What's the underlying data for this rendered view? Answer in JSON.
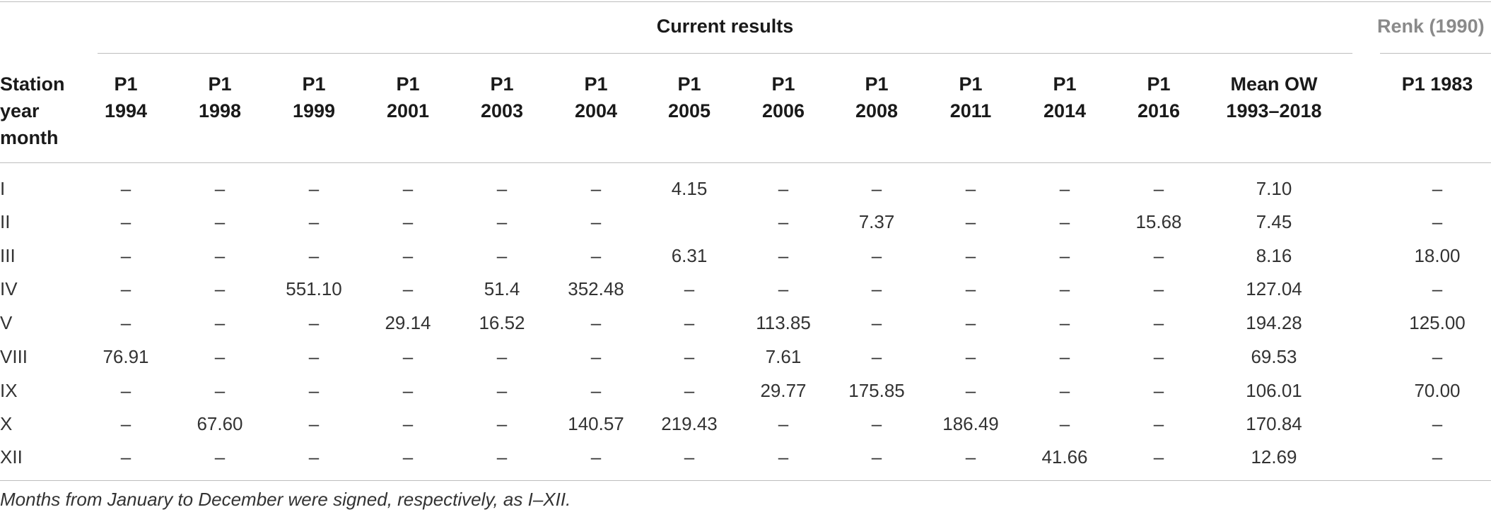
{
  "group_headers": {
    "current": "Current results",
    "renk": "Renk (1990)"
  },
  "columns": [
    "Station\nyear\nmonth",
    "P1\n1994",
    "P1\n1998",
    "P1\n1999",
    "P1\n2001",
    "P1\n2003",
    "P1\n2004",
    "P1\n2005",
    "P1\n2006",
    "P1\n2008",
    "P1\n2011",
    "P1\n2014",
    "P1\n2016",
    "Mean OW\n1993–2018",
    "P1 1983"
  ],
  "rows": [
    {
      "label": "I",
      "values": [
        "–",
        "–",
        "–",
        "–",
        "–",
        "–",
        "4.15",
        "–",
        "–",
        "–",
        "–",
        "–",
        "7.10",
        "–"
      ]
    },
    {
      "label": "II",
      "values": [
        "–",
        "–",
        "–",
        "–",
        "–",
        "–",
        "",
        "–",
        "7.37",
        "–",
        "–",
        "15.68",
        "7.45",
        "–"
      ]
    },
    {
      "label": "III",
      "values": [
        "–",
        "–",
        "–",
        "–",
        "–",
        "–",
        "6.31",
        "–",
        "–",
        "–",
        "–",
        "–",
        "8.16",
        "18.00"
      ]
    },
    {
      "label": "IV",
      "values": [
        "–",
        "–",
        "551.10",
        "–",
        "51.4",
        "352.48",
        "–",
        "–",
        "–",
        "–",
        "–",
        "–",
        "127.04",
        "–"
      ]
    },
    {
      "label": "V",
      "values": [
        "–",
        "–",
        "–",
        "29.14",
        "16.52",
        "–",
        "–",
        "113.85",
        "–",
        "–",
        "–",
        "–",
        "194.28",
        "125.00"
      ]
    },
    {
      "label": "VIII",
      "values": [
        "76.91",
        "–",
        "–",
        "–",
        "–",
        "–",
        "–",
        "7.61",
        "–",
        "–",
        "–",
        "–",
        "69.53",
        "–"
      ]
    },
    {
      "label": "IX",
      "values": [
        "–",
        "–",
        "–",
        "–",
        "–",
        "–",
        "–",
        "29.77",
        "175.85",
        "–",
        "–",
        "–",
        "106.01",
        "70.00"
      ]
    },
    {
      "label": "X",
      "values": [
        "–",
        "67.60",
        "–",
        "–",
        "–",
        "140.57",
        "219.43",
        "–",
        "–",
        "186.49",
        "–",
        "–",
        "170.84",
        "–"
      ]
    },
    {
      "label": "XII",
      "values": [
        "–",
        "–",
        "–",
        "–",
        "–",
        "–",
        "–",
        "–",
        "–",
        "–",
        "41.66",
        "–",
        "12.69",
        "–"
      ]
    }
  ],
  "footnote": "Months from January to December were signed, respectively, as I–XII.",
  "colors": {
    "rule": "#bdbdbd",
    "renk_header": "#8a8a8a"
  }
}
